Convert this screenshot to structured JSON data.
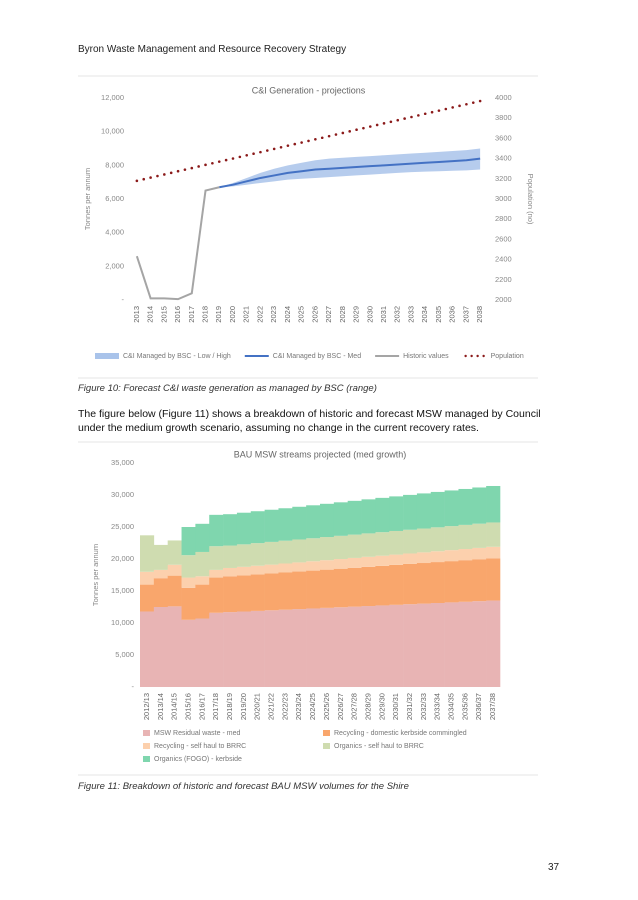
{
  "header": "Byron Waste Management and Resource Recovery Strategy",
  "chart_data": [
    {
      "type": "line",
      "title": "C&I Generation - projections",
      "categories": [
        "2013",
        "2014",
        "2015",
        "2016",
        "2017",
        "2018",
        "2019",
        "2020",
        "2021",
        "2022",
        "2023",
        "2024",
        "2025",
        "2026",
        "2027",
        "2028",
        "2029",
        "2030",
        "2031",
        "2032",
        "2033",
        "2034",
        "2035",
        "2036",
        "2037",
        "2038"
      ],
      "ylabel": "Tonnes per annum",
      "y2label": "Population (no)",
      "ylim": [
        0,
        12000
      ],
      "yticks": [
        {
          "value": 0,
          "label": "-"
        },
        {
          "value": 2000,
          "label": "2,000"
        },
        {
          "value": 4000,
          "label": "4,000"
        },
        {
          "value": 6000,
          "label": "6,000"
        },
        {
          "value": 8000,
          "label": "8,000"
        },
        {
          "value": 10000,
          "label": "10,000"
        },
        {
          "value": 12000,
          "label": "12,000"
        }
      ],
      "y2lim": [
        2000,
        4000
      ],
      "y2ticks": [
        2000,
        2200,
        2400,
        2600,
        2800,
        3000,
        3200,
        3400,
        3600,
        3800,
        4000
      ],
      "legend": "bottom",
      "series": [
        {
          "name": "C&I Managed by BSC - Low / High",
          "type": "band",
          "color": "#a9c3ea",
          "low": [
            null,
            null,
            null,
            null,
            null,
            null,
            6700,
            6750,
            6850,
            6950,
            7050,
            7150,
            7200,
            7250,
            7300,
            7350,
            7400,
            7450,
            7500,
            7550,
            7600,
            7625,
            7650,
            7675,
            7700,
            7750
          ],
          "high": [
            null,
            null,
            null,
            null,
            null,
            null,
            6700,
            6950,
            7250,
            7550,
            7800,
            8000,
            8150,
            8300,
            8400,
            8450,
            8500,
            8550,
            8600,
            8650,
            8700,
            8750,
            8800,
            8850,
            8900,
            9000
          ]
        },
        {
          "name": "C&I Managed by BSC - Med",
          "type": "line",
          "color": "#4472c4",
          "values": [
            null,
            null,
            null,
            null,
            null,
            null,
            6700,
            6850,
            7050,
            7250,
            7400,
            7550,
            7650,
            7750,
            7800,
            7850,
            7900,
            7950,
            8000,
            8050,
            8100,
            8150,
            8200,
            8250,
            8300,
            8400
          ]
        },
        {
          "name": "Historic values",
          "type": "line",
          "color": "#a5a5a5",
          "values": [
            2600,
            100,
            100,
            50,
            400,
            6500,
            6700,
            null,
            null,
            null,
            null,
            null,
            null,
            null,
            null,
            null,
            null,
            null,
            null,
            null,
            null,
            null,
            null,
            null,
            null,
            null
          ]
        },
        {
          "name": "Population",
          "type": "dotted",
          "color": "#8b1a1a",
          "axis": "y2",
          "values": [
            3180,
            3212,
            3243,
            3275,
            3306,
            3338,
            3370,
            3401,
            3433,
            3464,
            3496,
            3528,
            3559,
            3591,
            3622,
            3654,
            3686,
            3717,
            3749,
            3780,
            3812,
            3844,
            3875,
            3907,
            3938,
            3970
          ]
        }
      ]
    },
    {
      "type": "stacked_bar",
      "title": "BAU MSW streams projected (med growth)",
      "categories": [
        "2012/13",
        "2013/14",
        "2014/15",
        "2015/16",
        "2016/17",
        "2017/18",
        "2018/19",
        "2019/20",
        "2020/21",
        "2021/22",
        "2022/23",
        "2023/24",
        "2024/25",
        "2025/26",
        "2026/27",
        "2027/28",
        "2028/29",
        "2029/30",
        "2030/31",
        "2031/32",
        "2032/33",
        "2033/34",
        "2034/35",
        "2035/36",
        "2036/37",
        "2037/38"
      ],
      "ylabel": "Tonnes per annum",
      "ylim": [
        0,
        35000
      ],
      "yticks": [
        {
          "value": 0,
          "label": "-"
        },
        {
          "value": 5000,
          "label": "5,000"
        },
        {
          "value": 10000,
          "label": "10,000"
        },
        {
          "value": 15000,
          "label": "15,000"
        },
        {
          "value": 20000,
          "label": "20,000"
        },
        {
          "value": 25000,
          "label": "25,000"
        },
        {
          "value": 30000,
          "label": "30,000"
        },
        {
          "value": 35000,
          "label": "35,000"
        }
      ],
      "legend": "bottom",
      "series": [
        {
          "name": "MSW Residual waste - med",
          "color": "#e8b4b4",
          "values": [
            11800,
            12500,
            12600,
            10500,
            10700,
            11600,
            11700,
            11795,
            11890,
            11985,
            12080,
            12175,
            12270,
            12365,
            12460,
            12555,
            12650,
            12745,
            12840,
            12935,
            13030,
            13125,
            13220,
            13315,
            13410,
            13505
          ]
        },
        {
          "name": "Recycling - domestic kerbside commingled",
          "color": "#f9a66c",
          "values": [
            4200,
            4500,
            4800,
            5000,
            5300,
            5500,
            5600,
            5653,
            5706,
            5759,
            5812,
            5865,
            5918,
            5971,
            6024,
            6077,
            6130,
            6183,
            6236,
            6289,
            6342,
            6395,
            6448,
            6501,
            6554,
            6607
          ]
        },
        {
          "name": "Recycling - self haul to BRRC",
          "color": "#fcd0ad",
          "values": [
            2000,
            1300,
            1700,
            1600,
            1300,
            1200,
            1300,
            1326,
            1352,
            1378,
            1404,
            1430,
            1456,
            1482,
            1508,
            1534,
            1560,
            1586,
            1612,
            1638,
            1664,
            1690,
            1716,
            1742,
            1768,
            1794
          ]
        },
        {
          "name": "Organics - self haul to BRRC",
          "color": "#cfdcb0",
          "values": [
            5700,
            3900,
            3800,
            3500,
            3800,
            3700,
            3500,
            3516,
            3532,
            3548,
            3564,
            3580,
            3596,
            3612,
            3628,
            3644,
            3660,
            3676,
            3692,
            3708,
            3724,
            3740,
            3756,
            3772,
            3788,
            3804
          ]
        },
        {
          "name": "Organics (FOGO) - kerbside",
          "color": "#7fd6ae",
          "values": [
            0,
            0,
            0,
            4400,
            4400,
            4900,
            4900,
            4942,
            4984,
            5026,
            5068,
            5110,
            5152,
            5194,
            5236,
            5278,
            5320,
            5362,
            5404,
            5446,
            5488,
            5530,
            5572,
            5614,
            5656,
            5698
          ]
        }
      ]
    }
  ],
  "captions": [
    "Figure 10: Forecast C&I waste generation as managed by BSC (range)",
    "Figure 11: Breakdown of historic and forecast BAU MSW volumes for the Shire"
  ],
  "paragraph": "The figure below (Figure 11) shows a breakdown of historic and forecast MSW managed by Council under the medium growth scenario, assuming no change in the current recovery rates.",
  "page_number": "37"
}
